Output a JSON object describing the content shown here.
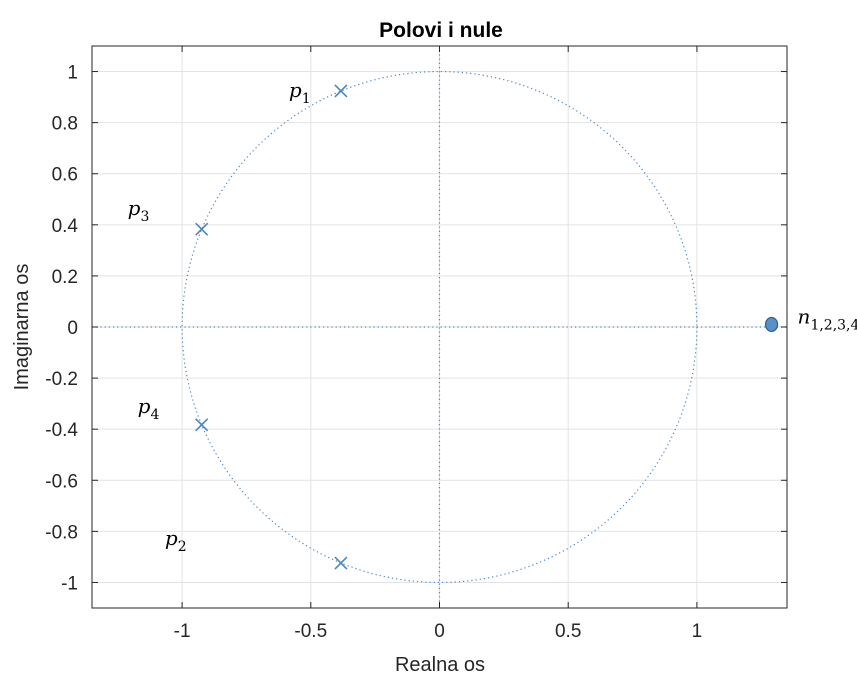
{
  "chart_data": {
    "type": "scatter",
    "title": "Polovi i nule",
    "xlabel": "Realna os",
    "ylabel": "Imaginarna os",
    "xlim": [
      -1.35,
      1.35
    ],
    "ylim": [
      -1.1,
      1.1
    ],
    "xticks": [
      -1,
      -0.5,
      0,
      0.5,
      1
    ],
    "xtick_labels": [
      "-1",
      "-0.5",
      "0",
      "0.5",
      "1"
    ],
    "yticks": [
      1,
      0.8,
      0.6,
      0.4,
      0.2,
      0,
      -0.2,
      -0.4,
      -0.6,
      -0.8,
      -1
    ],
    "ytick_labels": [
      "1",
      "0.8",
      "0.6",
      "0.4",
      "0.2",
      "0",
      "-0.2",
      "-0.4",
      "-0.6",
      "-0.8",
      "-1"
    ],
    "grid": true,
    "unit_circle": true,
    "colors": {
      "marker": "#4a86c0",
      "marker_fill": "#5b8fc8",
      "grid": "#e3e3e3",
      "axis": "#262626"
    },
    "poles": [
      {
        "label": "p",
        "sub": "1",
        "x": -0.383,
        "y": 0.924
      },
      {
        "label": "p",
        "sub": "2",
        "x": -0.383,
        "y": -0.924
      },
      {
        "label": "p",
        "sub": "3",
        "x": -0.924,
        "y": 0.383
      },
      {
        "label": "p",
        "sub": "4",
        "x": -0.924,
        "y": -0.383
      }
    ],
    "zeros": [
      {
        "label": "n",
        "sub": "1,2,3,4",
        "x": 1.29,
        "y": 0.01
      }
    ]
  }
}
